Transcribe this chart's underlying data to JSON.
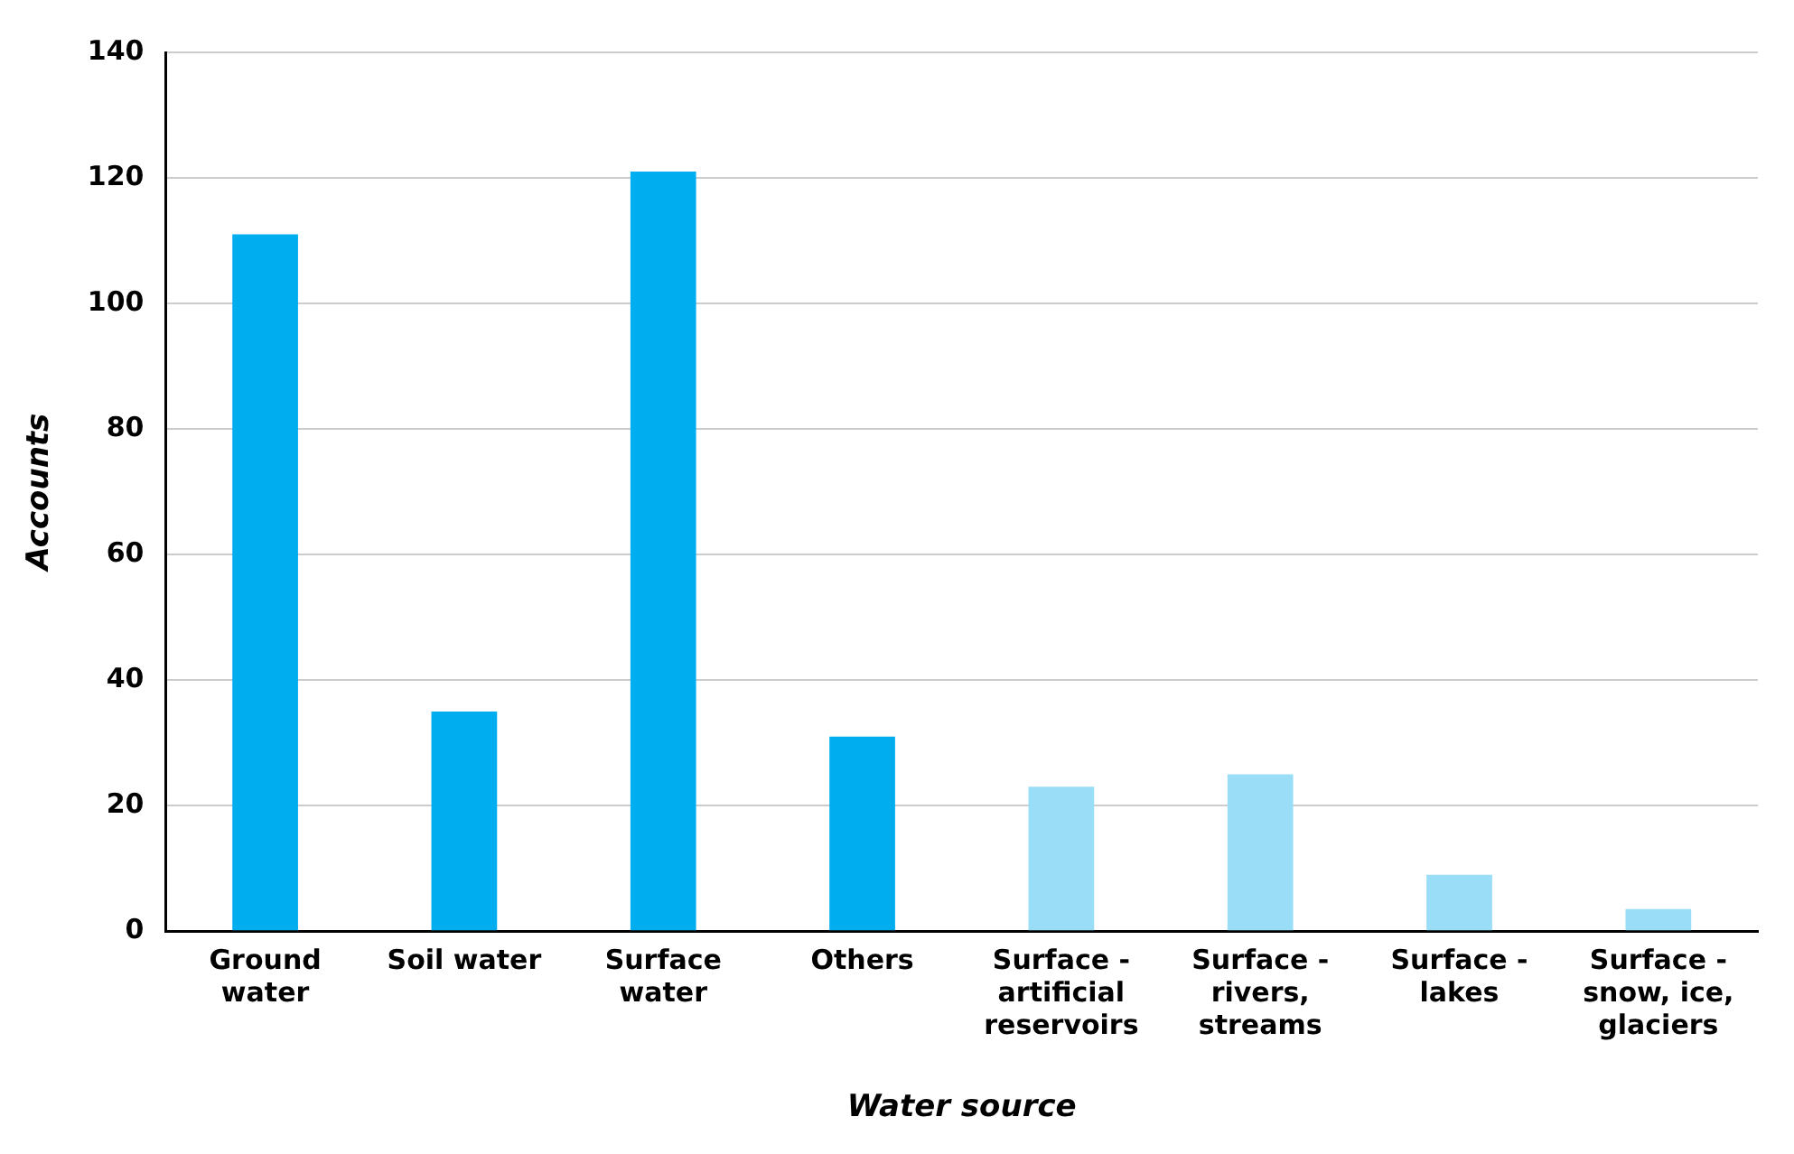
{
  "chart_data": {
    "type": "bar",
    "xlabel": "Water source",
    "ylabel": "Accounts",
    "categories": [
      "Ground water",
      "Soil water",
      "Surface water",
      "Others",
      "Surface - artificial reservoirs",
      "Surface - rivers, streams",
      "Surface - lakes",
      "Surface - snow, ice, glaciers"
    ],
    "values": [
      111,
      35,
      121,
      31,
      23,
      25,
      9,
      3.5
    ],
    "colors": [
      "#00aeef",
      "#00aeef",
      "#00aeef",
      "#00aeef",
      "#99ddf6",
      "#99ddf6",
      "#99ddf6",
      "#99ddf6"
    ],
    "ylim": [
      0,
      140
    ],
    "yticks": [
      0,
      20,
      40,
      60,
      80,
      100,
      120,
      140
    ],
    "grid": "y",
    "legend": false
  }
}
